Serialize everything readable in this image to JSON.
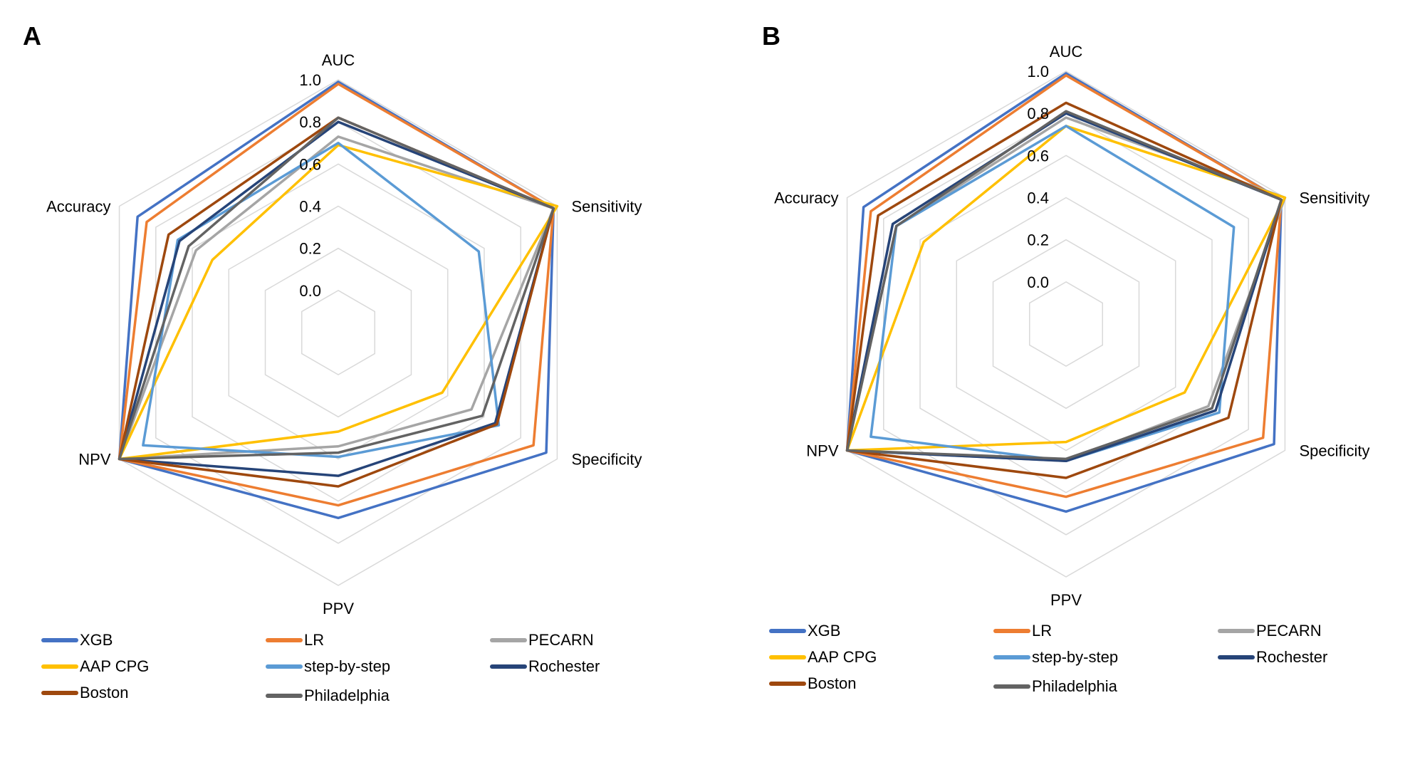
{
  "colors": {
    "XGB": "#4472C4",
    "LR": "#ED7D31",
    "PECARN": "#A5A5A5",
    "AAP CPG": "#FFC000",
    "step-by-step": "#5B9BD5",
    "Rochester": "#264478",
    "Boston": "#9E480E",
    "Philadelphia": "#636363",
    "grid": "#D9D9D9"
  },
  "chart_data": [
    {
      "type": "radar",
      "panel_label": "A",
      "axes": [
        "AUC",
        "Sensitivity",
        "Specificity",
        "PPV",
        "NPV",
        "Accuracy"
      ],
      "ticks": [
        "0.0",
        "0.2",
        "0.4",
        "0.6",
        "0.8",
        "1.0"
      ],
      "range": [
        0,
        1
      ],
      "legend_position": "bottom",
      "series": [
        {
          "name": "XGB",
          "values": [
            0.99,
            0.98,
            0.94,
            0.68,
            1.0,
            0.9
          ]
        },
        {
          "name": "LR",
          "values": [
            0.98,
            0.98,
            0.87,
            0.62,
            1.0,
            0.85
          ]
        },
        {
          "name": "PECARN",
          "values": [
            0.73,
            0.98,
            0.53,
            0.34,
            1.0,
            0.58
          ]
        },
        {
          "name": "AAP CPG",
          "values": [
            0.69,
            1.0,
            0.37,
            0.27,
            1.0,
            0.49
          ]
        },
        {
          "name": "step-by-step",
          "values": [
            0.7,
            0.57,
            0.68,
            0.39,
            0.87,
            0.68
          ]
        },
        {
          "name": "Rochester",
          "values": [
            0.8,
            0.98,
            0.66,
            0.48,
            1.0,
            0.67
          ]
        },
        {
          "name": "Boston",
          "values": [
            0.82,
            0.98,
            0.67,
            0.53,
            1.0,
            0.73
          ]
        },
        {
          "name": "Philadelphia",
          "values": [
            0.82,
            0.98,
            0.59,
            0.37,
            1.0,
            0.62
          ]
        }
      ]
    },
    {
      "type": "radar",
      "panel_label": "B",
      "axes": [
        "AUC",
        "Sensitivity",
        "Specificity",
        "PPV",
        "NPV",
        "Accuracy"
      ],
      "ticks": [
        "0.0",
        "0.2",
        "0.4",
        "0.6",
        "0.8",
        "1.0"
      ],
      "range": [
        0,
        1
      ],
      "legend_position": "bottom",
      "series": [
        {
          "name": "XGB",
          "values": [
            0.99,
            0.98,
            0.94,
            0.69,
            1.0,
            0.91
          ]
        },
        {
          "name": "LR",
          "values": [
            0.98,
            0.98,
            0.88,
            0.62,
            1.0,
            0.87
          ]
        },
        {
          "name": "PECARN",
          "values": [
            0.78,
            1.0,
            0.58,
            0.45,
            1.0,
            0.73
          ]
        },
        {
          "name": "AAP CPG",
          "values": [
            0.74,
            1.0,
            0.45,
            0.36,
            1.0,
            0.58
          ]
        },
        {
          "name": "step-by-step",
          "values": [
            0.74,
            0.72,
            0.64,
            0.45,
            0.87,
            0.73
          ]
        },
        {
          "name": "Rochester",
          "values": [
            0.8,
            0.98,
            0.62,
            0.45,
            1.0,
            0.75
          ]
        },
        {
          "name": "Boston",
          "values": [
            0.85,
            0.98,
            0.69,
            0.53,
            1.0,
            0.83
          ]
        },
        {
          "name": "Philadelphia",
          "values": [
            0.81,
            0.98,
            0.6,
            0.44,
            1.0,
            0.73
          ]
        }
      ]
    }
  ],
  "legend": [
    {
      "key": "XGB",
      "label": "XGB"
    },
    {
      "key": "LR",
      "label": "LR"
    },
    {
      "key": "PECARN",
      "label": "PECARN"
    },
    {
      "key": "AAP CPG",
      "label": "AAP CPG"
    },
    {
      "key": "step-by-step",
      "label": "step-by-step"
    },
    {
      "key": "Rochester",
      "label": "Rochester"
    },
    {
      "key": "Boston",
      "label": "Boston"
    },
    {
      "key": "Philadelphia",
      "label": "Philadelphia"
    }
  ]
}
